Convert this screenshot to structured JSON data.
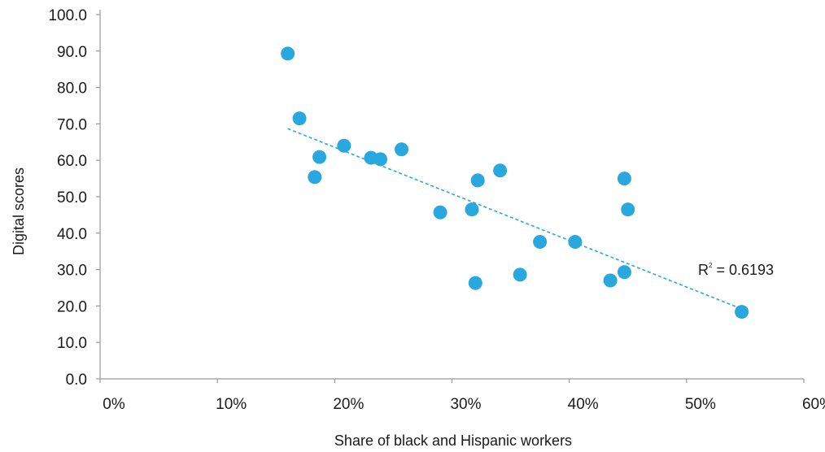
{
  "chart_data": {
    "type": "scatter",
    "title": "",
    "xlabel": "Share of black and Hispanic workers",
    "ylabel": "Digital scores",
    "xlim": [
      0,
      0.6
    ],
    "ylim": [
      0,
      100
    ],
    "x_ticks": [
      0,
      0.1,
      0.2,
      0.3,
      0.4,
      0.5,
      0.6
    ],
    "x_tick_labels": [
      "0%",
      "10%",
      "20%",
      "30%",
      "40%",
      "50%",
      "60%"
    ],
    "y_ticks": [
      0,
      10,
      20,
      30,
      40,
      50,
      60,
      70,
      80,
      90,
      100
    ],
    "y_tick_labels": [
      "0.0",
      "10.0",
      "20.0",
      "30.0",
      "40.0",
      "50.0",
      "60.0",
      "70.0",
      "80.0",
      "90.0",
      "100.0"
    ],
    "grid": false,
    "legend": "none",
    "series": [
      {
        "points": [
          {
            "x": 0.16,
            "y": 89.3
          },
          {
            "x": 0.17,
            "y": 71.5
          },
          {
            "x": 0.187,
            "y": 60.9
          },
          {
            "x": 0.183,
            "y": 55.4
          },
          {
            "x": 0.208,
            "y": 64.0
          },
          {
            "x": 0.231,
            "y": 60.7
          },
          {
            "x": 0.239,
            "y": 60.3
          },
          {
            "x": 0.257,
            "y": 63.0
          },
          {
            "x": 0.29,
            "y": 45.7
          },
          {
            "x": 0.317,
            "y": 46.5
          },
          {
            "x": 0.322,
            "y": 54.5
          },
          {
            "x": 0.341,
            "y": 57.2
          },
          {
            "x": 0.32,
            "y": 26.3
          },
          {
            "x": 0.358,
            "y": 28.6
          },
          {
            "x": 0.375,
            "y": 37.6
          },
          {
            "x": 0.405,
            "y": 37.6
          },
          {
            "x": 0.435,
            "y": 27.0
          },
          {
            "x": 0.447,
            "y": 29.3
          },
          {
            "x": 0.447,
            "y": 55.0
          },
          {
            "x": 0.45,
            "y": 46.5
          },
          {
            "x": 0.547,
            "y": 18.4
          }
        ]
      }
    ],
    "trendline": {
      "type": "linear",
      "x_start": 0.16,
      "y_start": 68.7,
      "x_end": 0.547,
      "y_end": 19.2
    },
    "annotation": {
      "r_label": "R",
      "r_superscript": "2",
      "r_value_text": " = 0.6193"
    },
    "colors": {
      "points": "#29a8e0",
      "trendline": "#29a8e0",
      "axis": "#9a9a9a",
      "text": "#1a1a1a"
    }
  }
}
